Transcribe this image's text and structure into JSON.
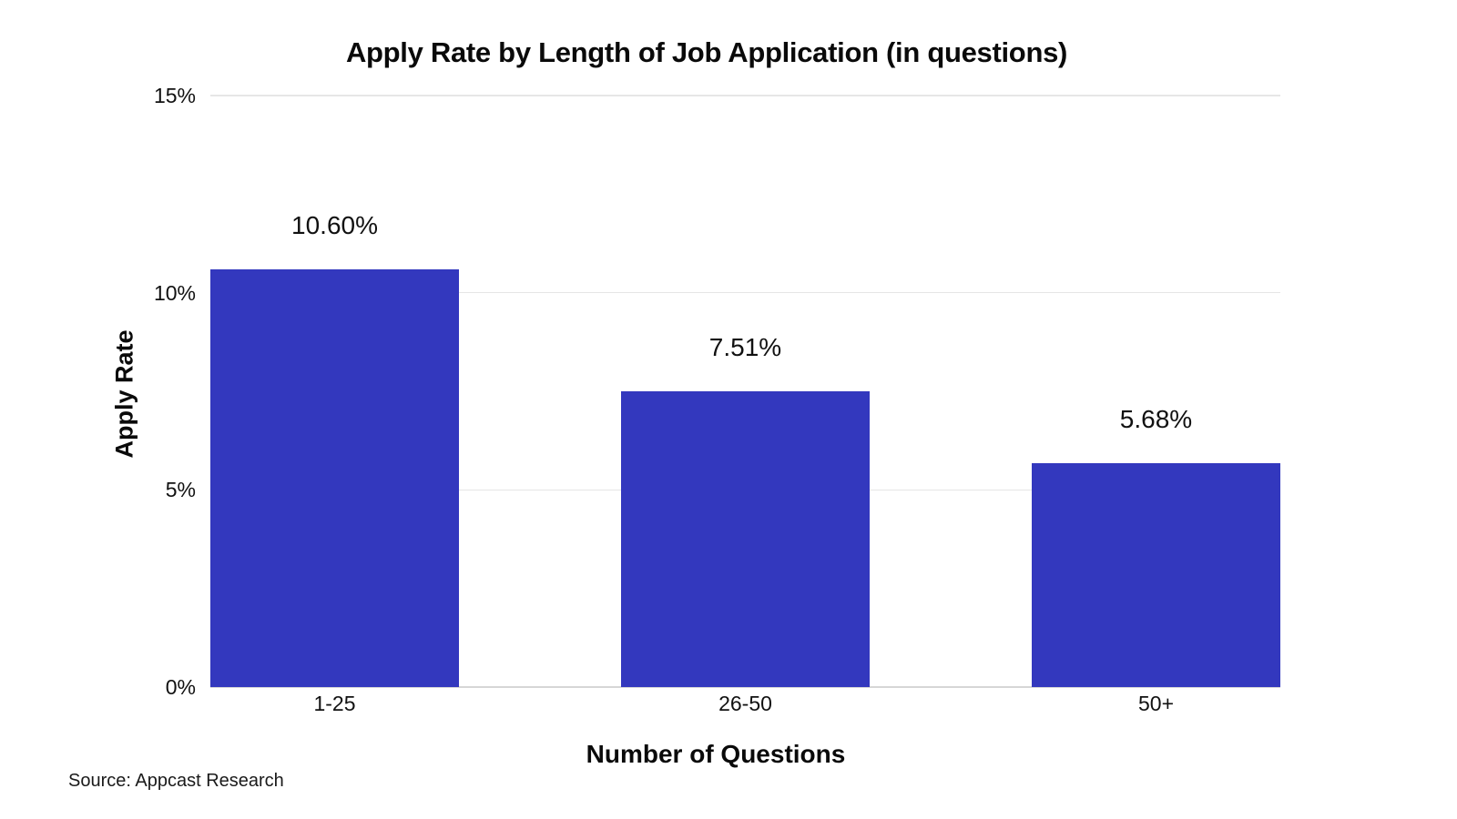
{
  "figure": {
    "source": "Source: Appcast Research"
  },
  "chart_data": {
    "type": "bar",
    "title": "Apply Rate by Length of Job Application (in questions)",
    "categories": [
      "1-25",
      "26-50",
      "50+"
    ],
    "values": [
      10.6,
      7.51,
      5.68
    ],
    "value_labels": [
      "10.60%",
      "7.51%",
      "5.68%"
    ],
    "xlabel": "Number of Questions",
    "ylabel": "Apply Rate",
    "ylim": [
      0,
      15
    ],
    "yticks": [
      0,
      5,
      10,
      15
    ],
    "ytick_labels": [
      "0%",
      "5%",
      "10%",
      "15%"
    ],
    "legend": "none",
    "grid": "horizontal",
    "bar_color": "#3338BE",
    "gridline_color": "#e6e6e6",
    "axis_line_color": "#d6d6d6",
    "background_color": "#ffffff"
  }
}
